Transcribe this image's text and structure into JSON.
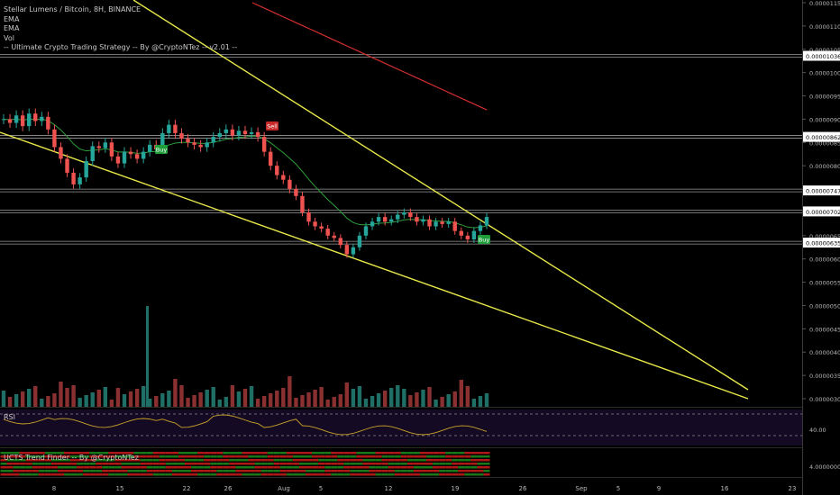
{
  "legend": {
    "symbol_line": "Stellar Lumens / Bitcoin, 8H, BINANCE",
    "ema1": "EMA",
    "ema2": "EMA",
    "vol": "Vol",
    "strategy": "-- Ultimate Crypto Trading Strategy -- By @CryptoNTez -- v2.01 --"
  },
  "rsi_pane": {
    "title": "RSI",
    "level_label": "40.00"
  },
  "ucts_pane": {
    "title": "UCTS Trend Finder -- By @CryptoNTez",
    "level_label": "4.00000000"
  },
  "signals": [
    {
      "label": "Buy",
      "color": "#1f9d3a",
      "date": "Jul 19"
    },
    {
      "label": "Sell",
      "color": "#c62828",
      "date": "Jul 28"
    },
    {
      "label": "Buy",
      "color": "#1f9d3a",
      "date": "Aug 21"
    }
  ],
  "colors": {
    "up": "#26a69a",
    "down": "#ef5350",
    "ema_fast": "#2e9e3a",
    "ema_slow": "#d32f2f",
    "trendline": "#e8e84a",
    "rsi": "#c9a227"
  },
  "chart_data": {
    "type": "candlestick",
    "x_axis_ticks": [
      "8",
      "15",
      "22",
      "26",
      "Aug",
      "5",
      "12",
      "19",
      "26",
      "Sep",
      "5",
      "9",
      "16",
      "23"
    ],
    "y_axis_ticks": [
      "0.00001150",
      "0.00001100",
      "0.00001050",
      "0.00001000",
      "0.00000950",
      "0.00000900",
      "0.00000850",
      "0.00000800",
      "0.00000750",
      "0.00000700",
      "0.00000650",
      "0.00000600",
      "0.00000550",
      "0.00000500",
      "0.00000450",
      "0.00000400",
      "0.00000350",
      "0.00000300"
    ],
    "price_labels": [
      "0.00001036",
      "0.00000862",
      "0.00000747",
      "0.00000702",
      "0.00000635"
    ],
    "horizontal_levels": [
      1.036e-05,
      8.62e-06,
      7.47e-06,
      7.02e-06,
      6.35e-06
    ],
    "close_series": [
      9e-06,
      8.92e-06,
      9.08e-06,
      8.85e-06,
      9.12e-06,
      8.96e-06,
      9.05e-06,
      8.78e-06,
      8.4e-06,
      8.15e-06,
      7.85e-06,
      7.6e-06,
      7.75e-06,
      8.1e-06,
      8.42e-06,
      8.38e-06,
      8.5e-06,
      8.2e-06,
      8.05e-06,
      8.3e-06,
      8.25e-06,
      8.15e-06,
      8.3e-06,
      8.45e-06,
      8.35e-06,
      8.7e-06,
      8.88e-06,
      8.7e-06,
      8.58e-06,
      8.5e-06,
      8.45e-06,
      8.4e-06,
      8.5e-06,
      8.62e-06,
      8.7e-06,
      8.78e-06,
      8.65e-06,
      8.75e-06,
      8.68e-06,
      8.72e-06,
      8.62e-06,
      8.3e-06,
      8e-06,
      7.8e-06,
      7.7e-06,
      7.5e-06,
      7.35e-06,
      7e-06,
      6.8e-06,
      6.7e-06,
      6.65e-06,
      6.5e-06,
      6.45e-06,
      6.3e-06,
      6.1e-06,
      6.25e-06,
      6.5e-06,
      6.7e-06,
      6.8e-06,
      6.9e-06,
      6.8e-06,
      6.85e-06,
      6.95e-06,
      7e-06,
      6.9e-06,
      6.8e-06,
      6.85e-06,
      6.7e-06,
      6.8e-06,
      6.75e-06,
      6.8e-06,
      6.6e-06,
      6.5e-06,
      6.42e-06,
      6.6e-06,
      6.72e-06,
      6.9e-06
    ]
  }
}
